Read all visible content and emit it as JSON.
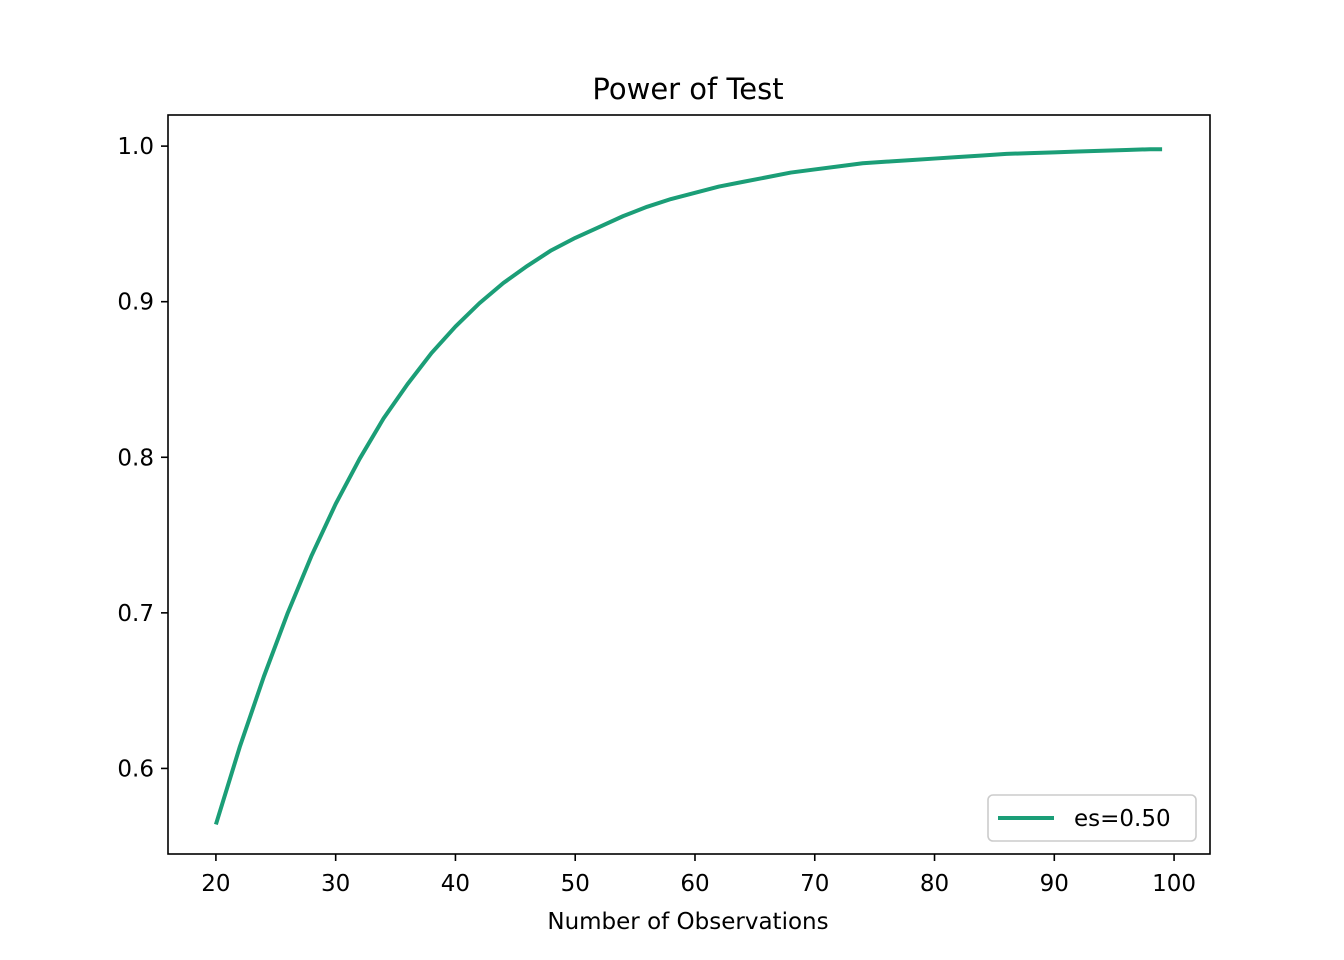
{
  "chart_data": {
    "type": "line",
    "title": "Power of Test",
    "xlabel": "Number of Observations",
    "ylabel": "",
    "xlim": [
      16,
      103
    ],
    "ylim": [
      0.545,
      1.02
    ],
    "xticks": [
      20,
      30,
      40,
      50,
      60,
      70,
      80,
      90,
      100
    ],
    "yticks": [
      0.6,
      0.7,
      0.8,
      0.9,
      1.0
    ],
    "xtick_labels": [
      "20",
      "30",
      "40",
      "50",
      "60",
      "70",
      "80",
      "90",
      "100"
    ],
    "ytick_labels": [
      "0.6",
      "0.7",
      "0.8",
      "0.9",
      "1.0"
    ],
    "grid": false,
    "legend_position": "lower-right",
    "series": [
      {
        "name": "es=0.50",
        "color": "#1b9e77",
        "x": [
          20,
          22,
          24,
          26,
          28,
          30,
          32,
          34,
          36,
          38,
          40,
          42,
          44,
          46,
          48,
          50,
          52,
          54,
          56,
          58,
          60,
          62,
          64,
          66,
          68,
          70,
          72,
          74,
          76,
          78,
          80,
          82,
          84,
          86,
          88,
          90,
          92,
          94,
          96,
          98,
          99
        ],
        "y": [
          0.564,
          0.614,
          0.659,
          0.7,
          0.737,
          0.77,
          0.799,
          0.825,
          0.847,
          0.867,
          0.884,
          0.899,
          0.912,
          0.923,
          0.933,
          0.941,
          0.948,
          0.955,
          0.961,
          0.966,
          0.97,
          0.974,
          0.977,
          0.98,
          0.983,
          0.985,
          0.987,
          0.989,
          0.99,
          0.991,
          0.992,
          0.993,
          0.994,
          0.995,
          0.9955,
          0.996,
          0.9965,
          0.997,
          0.9975,
          0.998,
          0.998
        ]
      }
    ]
  }
}
